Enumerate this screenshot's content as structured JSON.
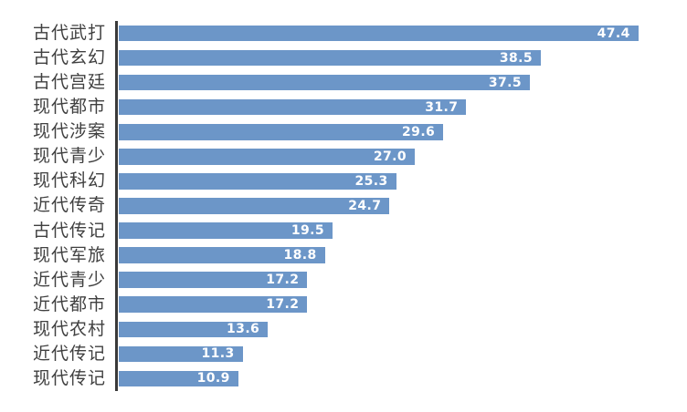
{
  "chart_data": {
    "type": "bar",
    "orientation": "horizontal",
    "title": "",
    "xlabel": "",
    "ylabel": "",
    "xlim": [
      0,
      50
    ],
    "grid": false,
    "legend_position": "none",
    "value_labels_position": "inside-end",
    "categories": [
      "古代武打",
      "古代玄幻",
      "古代宫廷",
      "现代都市",
      "现代涉案",
      "现代青少",
      "现代科幻",
      "近代传奇",
      "古代传记",
      "现代军旅",
      "近代青少",
      "近代都市",
      "现代农村",
      "近代传记",
      "现代传记"
    ],
    "values": [
      47.4,
      38.5,
      37.5,
      31.7,
      29.6,
      27.0,
      25.3,
      24.7,
      19.5,
      18.8,
      17.2,
      17.2,
      13.6,
      11.3,
      10.9
    ],
    "value_labels": [
      "47.4",
      "38.5",
      "37.5",
      "31.7",
      "29.6",
      "27.0",
      "25.3",
      "24.7",
      "19.5",
      "18.8",
      "17.2",
      "17.2",
      "13.6",
      "11.3",
      "10.9"
    ],
    "colors": {
      "bar": "#6C96C8",
      "value_text": "#FFFFFF",
      "category_text": "#404040",
      "axis_line": "#3A3A3A",
      "background": "#FFFFFF"
    }
  }
}
